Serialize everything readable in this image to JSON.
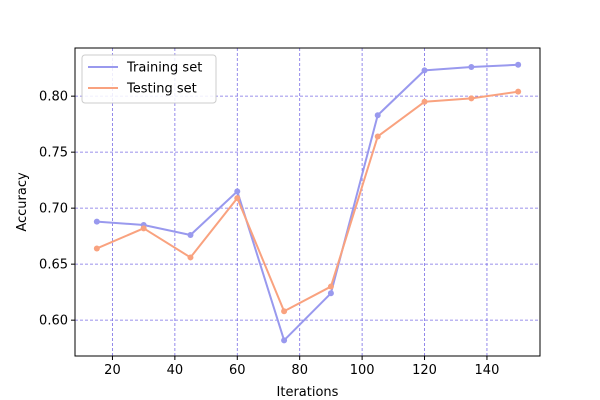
{
  "chart_data": {
    "type": "line",
    "xlabel": "Iterations",
    "ylabel": "Accuracy",
    "xlim": [
      8,
      157
    ],
    "ylim": [
      0.568,
      0.843
    ],
    "xticks": [
      20,
      40,
      60,
      80,
      100,
      120,
      140
    ],
    "yticks": [
      0.6,
      0.65,
      0.7,
      0.75,
      0.8
    ],
    "x_tick_labels": [
      "20",
      "40",
      "60",
      "80",
      "100",
      "120",
      "140"
    ],
    "y_tick_labels": [
      "0.60",
      "0.65",
      "0.70",
      "0.75",
      "0.80"
    ],
    "grid": true,
    "legend_position": "upper-left",
    "x": [
      15,
      30,
      45,
      60,
      75,
      90,
      105,
      120,
      135,
      150
    ],
    "series": [
      {
        "name": "Training set",
        "color": "#9999ee",
        "values": [
          0.688,
          0.685,
          0.676,
          0.715,
          0.582,
          0.624,
          0.783,
          0.823,
          0.826,
          0.828
        ]
      },
      {
        "name": "Testing set",
        "color": "#f9a27f",
        "values": [
          0.664,
          0.682,
          0.656,
          0.709,
          0.608,
          0.63,
          0.764,
          0.795,
          0.798,
          0.804
        ]
      }
    ],
    "grid_color": "#7a6ee6"
  }
}
